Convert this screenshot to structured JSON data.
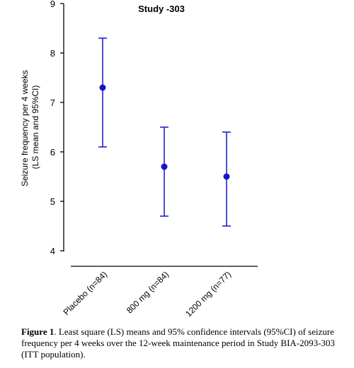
{
  "chart_data": {
    "type": "scatter",
    "title": "Study -303",
    "ylabel_line1": "Seizure frequency per 4 weeks",
    "ylabel_line2": "(LS mean and 95%CI)",
    "xlabel": "",
    "categories": [
      "Placebo (n=84)",
      "800 mg (n=84)",
      "1200 mg (n=77)"
    ],
    "series": [
      {
        "values": [
          7.3,
          5.7,
          5.5
        ],
        "ci_lower": [
          6.1,
          4.7,
          4.5
        ],
        "ci_upper": [
          8.3,
          6.5,
          6.4
        ],
        "color": "#1414c8"
      }
    ],
    "ylim": [
      4,
      9
    ],
    "yticks": [
      "4",
      "5",
      "6",
      "7",
      "8",
      "9"
    ],
    "grid": false,
    "legend": "none"
  },
  "caption": {
    "label": "Figure 1",
    "text": ". Least square (LS) means and 95% confidence intervals (95%CI) of seizure frequency per 4 weeks over the 12-week maintenance period in Study BIA-2093-303 (ITT population)."
  }
}
